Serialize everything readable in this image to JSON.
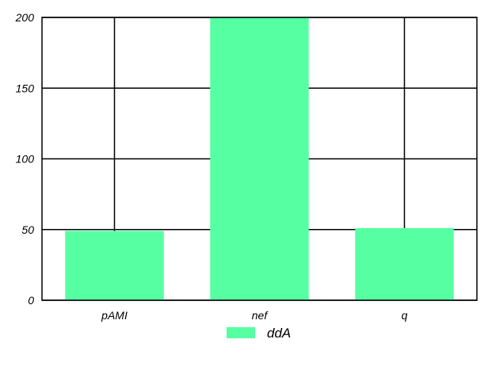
{
  "chart_data": {
    "type": "bar",
    "categories": [
      "pAMI",
      "nef",
      "q"
    ],
    "series": [
      {
        "name": "ddA",
        "values": [
          49,
          200,
          51
        ]
      }
    ],
    "ylim": [
      0,
      200
    ],
    "yticks": [
      0,
      50,
      100,
      150,
      200
    ],
    "ytick_labels": [
      "0",
      "50",
      "100",
      "150",
      "200"
    ],
    "grid": true,
    "legend_position": "bottom-center",
    "colors": {
      "bar": "#55ffa2",
      "grid": "#000000"
    }
  }
}
